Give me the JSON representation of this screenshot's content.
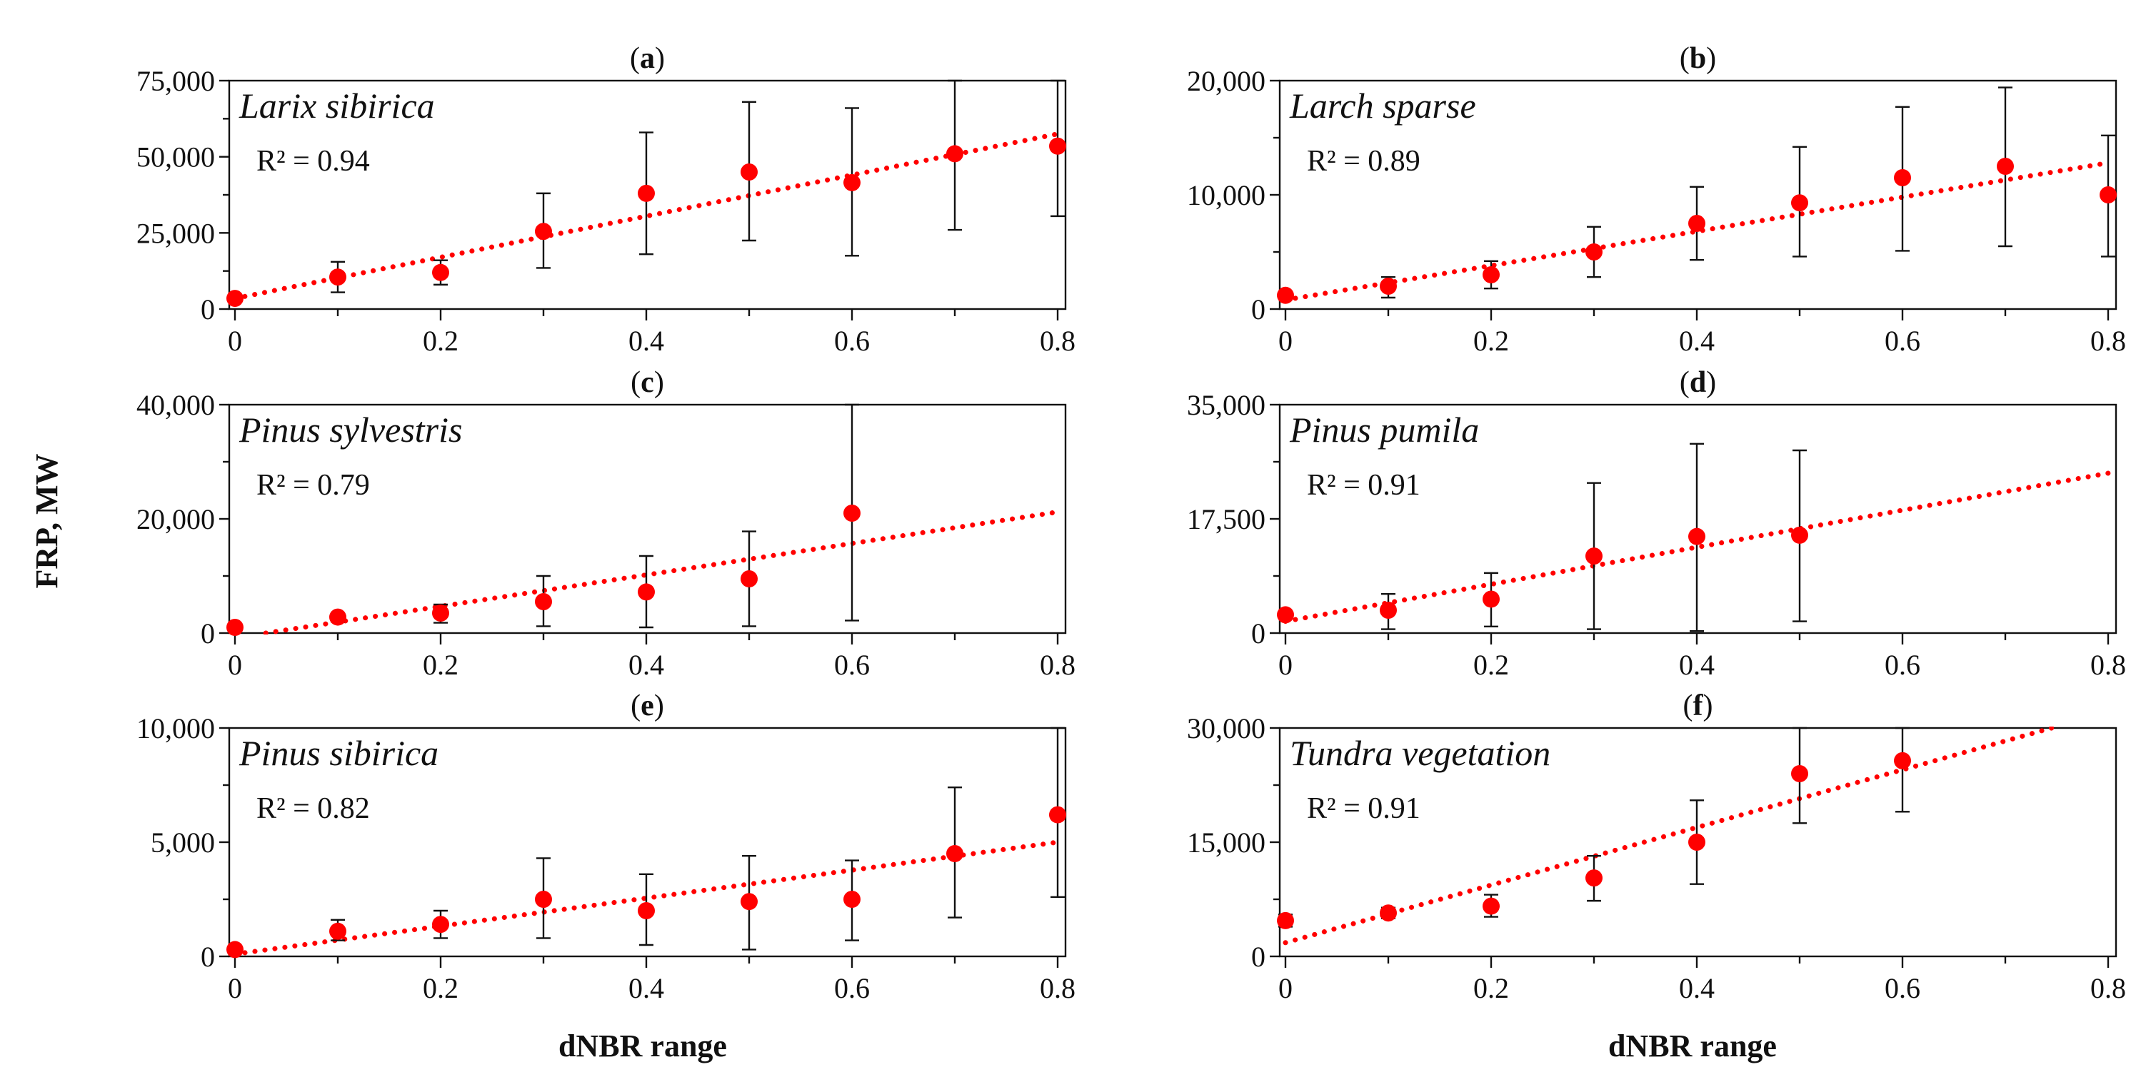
{
  "figure": {
    "y_axis_title": "FRP, MW",
    "x_axis_title": "dNBR range",
    "colors": {
      "points": "#ff0000",
      "trend": "#ff0000",
      "error_bars": "#111111",
      "axes": "#111111"
    }
  },
  "chart_data": [
    {
      "type": "scatter",
      "panel": "(a)",
      "panel_letter": "a",
      "species": "Larix sibirica",
      "r2": "R² = 0.94",
      "xlim": [
        0,
        0.8
      ],
      "ylim": [
        0,
        75000
      ],
      "x_ticks": [
        "0",
        "0.2",
        "0.4",
        "0.6",
        "0.8"
      ],
      "y_ticks": [
        {
          "v": 0,
          "label": "0"
        },
        {
          "v": 25000,
          "label": "25,000"
        },
        {
          "v": 50000,
          "label": "50,000"
        },
        {
          "v": 75000,
          "label": "75,000"
        }
      ],
      "x": [
        0,
        0.1,
        0.2,
        0.3,
        0.4,
        0.5,
        0.6,
        0.7,
        0.8
      ],
      "y": [
        3500,
        10500,
        12000,
        25500,
        38000,
        45000,
        41500,
        51000,
        53500
      ],
      "err_low": [
        3500,
        5500,
        8000,
        13500,
        18000,
        22500,
        17500,
        26000,
        30500
      ],
      "err_high": [
        3500,
        15500,
        16000,
        38000,
        58000,
        68000,
        66000,
        76000,
        77000
      ],
      "trend": {
        "x0": 0,
        "y0": 3500,
        "x1": 0.8,
        "y1": 57500
      }
    },
    {
      "type": "scatter",
      "panel": "(b)",
      "panel_letter": "b",
      "species": "Larch sparse",
      "r2": "R² = 0.89",
      "xlim": [
        0,
        0.8
      ],
      "ylim": [
        0,
        20000
      ],
      "x_ticks": [
        "0",
        "0.2",
        "0.4",
        "0.6",
        "0.8"
      ],
      "y_ticks": [
        {
          "v": 0,
          "label": "0"
        },
        {
          "v": 10000,
          "label": "10,000"
        },
        {
          "v": 20000,
          "label": "20,000"
        }
      ],
      "x": [
        0,
        0.1,
        0.2,
        0.3,
        0.4,
        0.5,
        0.6,
        0.7,
        0.8
      ],
      "y": [
        1200,
        2000,
        3000,
        5000,
        7500,
        9300,
        11500,
        12500,
        10000
      ],
      "err_low": [
        1200,
        1000,
        1800,
        2800,
        4300,
        4600,
        5100,
        5500,
        4600
      ],
      "err_high": [
        1200,
        2800,
        4200,
        7200,
        10700,
        14200,
        17700,
        19400,
        15200
      ],
      "trend": {
        "x0": 0,
        "y0": 800,
        "x1": 0.8,
        "y1": 12800
      }
    },
    {
      "type": "scatter",
      "panel": "(c)",
      "panel_letter": "c",
      "species": "Pinus sylvestris",
      "r2": "R² = 0.79",
      "xlim": [
        0,
        0.8
      ],
      "ylim": [
        0,
        40000
      ],
      "x_ticks": [
        "0",
        "0.2",
        "0.4",
        "0.6",
        "0.8"
      ],
      "y_ticks": [
        {
          "v": 0,
          "label": "0"
        },
        {
          "v": 20000,
          "label": "20,000"
        },
        {
          "v": 40000,
          "label": "40,000"
        }
      ],
      "x": [
        0,
        0.1,
        0.2,
        0.3,
        0.4,
        0.5,
        0.6
      ],
      "y": [
        1000,
        2800,
        3500,
        5500,
        7200,
        9500,
        21000
      ],
      "err_low": [
        1000,
        2000,
        1800,
        1200,
        1000,
        1200,
        2200
      ],
      "err_high": [
        1000,
        3500,
        5000,
        10000,
        13500,
        17800,
        40000
      ],
      "trend": {
        "x0": 0.03,
        "y0": 0,
        "x1": 0.8,
        "y1": 21200
      }
    },
    {
      "type": "scatter",
      "panel": "(d)",
      "panel_letter": "d",
      "species": "Pinus pumila",
      "r2": "R² = 0.91",
      "xlim": [
        0,
        0.8
      ],
      "ylim": [
        0,
        35000
      ],
      "x_ticks": [
        "0",
        "0.2",
        "0.4",
        "0.6",
        "0.8"
      ],
      "y_ticks": [
        {
          "v": 0,
          "label": "0"
        },
        {
          "v": 17500,
          "label": "17,500"
        },
        {
          "v": 35000,
          "label": "35,000"
        }
      ],
      "x": [
        0,
        0.1,
        0.2,
        0.3,
        0.4,
        0.5
      ],
      "y": [
        2800,
        3500,
        5200,
        11800,
        14800,
        15000
      ],
      "err_low": [
        2800,
        600,
        1000,
        600,
        300,
        1800
      ],
      "err_high": [
        2800,
        6000,
        9200,
        23000,
        29000,
        28000
      ],
      "trend": {
        "x0": 0,
        "y0": 1800,
        "x1": 0.8,
        "y1": 24500
      }
    },
    {
      "type": "scatter",
      "panel": "(e)",
      "panel_letter": "e",
      "species": "Pinus sibirica",
      "r2": "R² = 0.82",
      "xlim": [
        0,
        0.8
      ],
      "ylim": [
        0,
        10000
      ],
      "x_ticks": [
        "0",
        "0.2",
        "0.4",
        "0.6",
        "0.8"
      ],
      "y_ticks": [
        {
          "v": 0,
          "label": "0"
        },
        {
          "v": 5000,
          "label": "5,000"
        },
        {
          "v": 10000,
          "label": "10,000"
        }
      ],
      "x": [
        0,
        0.1,
        0.2,
        0.3,
        0.4,
        0.5,
        0.6,
        0.7,
        0.8
      ],
      "y": [
        300,
        1100,
        1400,
        2500,
        2000,
        2400,
        2500,
        4500,
        6200
      ],
      "err_low": [
        300,
        700,
        800,
        800,
        500,
        300,
        700,
        1700,
        2600
      ],
      "err_high": [
        300,
        1600,
        2000,
        4300,
        3600,
        4400,
        4200,
        7400,
        10000
      ],
      "trend": {
        "x0": 0,
        "y0": 100,
        "x1": 0.8,
        "y1": 5000
      }
    },
    {
      "type": "scatter",
      "panel": "(f)",
      "panel_letter": "f",
      "species": "Tundra vegetation",
      "r2": "R² = 0.91",
      "xlim": [
        0,
        0.8
      ],
      "ylim": [
        0,
        30000
      ],
      "x_ticks": [
        "0",
        "0.2",
        "0.4",
        "0.6",
        "0.8"
      ],
      "y_ticks": [
        {
          "v": 0,
          "label": "0"
        },
        {
          "v": 15000,
          "label": "15,000"
        },
        {
          "v": 30000,
          "label": "30,000"
        }
      ],
      "x": [
        0,
        0.1,
        0.2,
        0.3,
        0.4,
        0.5,
        0.6
      ],
      "y": [
        4700,
        5700,
        6600,
        10300,
        15000,
        24000,
        25700
      ],
      "err_low": [
        3900,
        5000,
        5200,
        7300,
        9500,
        17500,
        19000
      ],
      "err_high": [
        5500,
        6400,
        8100,
        13200,
        20500,
        30000,
        30000
      ],
      "trend": {
        "x0": 0,
        "y0": 1800,
        "x1": 0.745,
        "y1": 30000
      }
    }
  ]
}
